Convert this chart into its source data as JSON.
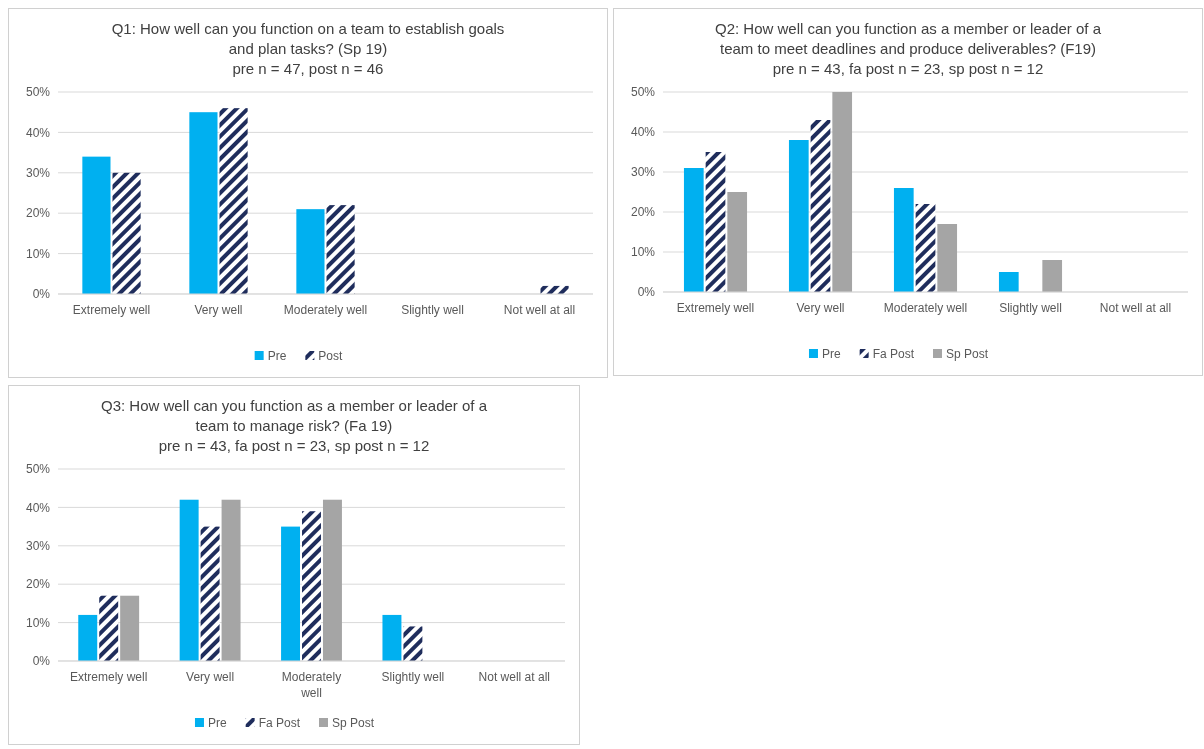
{
  "chart_data": [
    {
      "type": "bar",
      "title": "Q1: How well can you function on a team to establish goals and plan tasks? (Sp 19)",
      "subtitle": "pre n = 47, post n = 46",
      "categories": [
        "Extremely well",
        "Very well",
        "Moderately well",
        "Slightly well",
        "Not well at all"
      ],
      "series": [
        {
          "name": "Pre",
          "color": "#00b0f0",
          "values": [
            34,
            45,
            21,
            0,
            0
          ]
        },
        {
          "name": "Post",
          "color": "#1f2d5c",
          "values": [
            30,
            46,
            22,
            0,
            2
          ]
        }
      ],
      "ylim": [
        0,
        50
      ],
      "yticks": [
        {
          "value": 0,
          "label": "0%"
        },
        {
          "value": 10,
          "label": "10%"
        },
        {
          "value": 20,
          "label": "20%"
        },
        {
          "value": 30,
          "label": "30%"
        },
        {
          "value": 40,
          "label": "40%"
        },
        {
          "value": 50,
          "label": "50%"
        }
      ],
      "grid": "y",
      "legend": "bottom"
    },
    {
      "type": "bar",
      "title": "Q2: How well can you function as a member or leader of a team to meet deadlines and produce deliverables? (F19)",
      "subtitle": "pre n = 43, fa post n = 23, sp post n = 12",
      "categories": [
        "Extremely well",
        "Very well",
        "Moderately well",
        "Slightly well",
        "Not well at all"
      ],
      "series": [
        {
          "name": "Pre",
          "color": "#00b0f0",
          "values": [
            31,
            38,
            26,
            5,
            0
          ]
        },
        {
          "name": "Fa Post",
          "color": "#1f2d5c",
          "values": [
            35,
            43,
            22,
            0,
            0
          ]
        },
        {
          "name": "Sp Post",
          "color": "#a5a5a5",
          "values": [
            25,
            50,
            17,
            8,
            0
          ]
        }
      ],
      "ylim": [
        0,
        50
      ],
      "yticks": [
        {
          "value": 0,
          "label": "0%"
        },
        {
          "value": 10,
          "label": "10%"
        },
        {
          "value": 20,
          "label": "20%"
        },
        {
          "value": 30,
          "label": "30%"
        },
        {
          "value": 40,
          "label": "40%"
        },
        {
          "value": 50,
          "label": "50%"
        }
      ],
      "grid": "y",
      "legend": "bottom"
    },
    {
      "type": "bar",
      "title": "Q3: How well can you function as a member or leader of a team to manage risk? (Fa 19)",
      "subtitle": "pre n = 43, fa post n = 23, sp post n = 12",
      "categories": [
        "Extremely well",
        "Very well",
        "Moderately well",
        "Slightly well",
        "Not well at all"
      ],
      "series": [
        {
          "name": "Pre",
          "color": "#00b0f0",
          "values": [
            12,
            42,
            35,
            12,
            0
          ]
        },
        {
          "name": "Fa Post",
          "color": "#1f2d5c",
          "values": [
            17,
            35,
            39,
            9,
            0
          ]
        },
        {
          "name": "Sp Post",
          "color": "#a5a5a5",
          "values": [
            17,
            42,
            42,
            0,
            0
          ]
        }
      ],
      "ylim": [
        0,
        50
      ],
      "yticks": [
        {
          "value": 0,
          "label": "0%"
        },
        {
          "value": 10,
          "label": "10%"
        },
        {
          "value": 20,
          "label": "20%"
        },
        {
          "value": 30,
          "label": "30%"
        },
        {
          "value": 40,
          "label": "40%"
        },
        {
          "value": 50,
          "label": "50%"
        }
      ],
      "grid": "y",
      "legend": "bottom"
    }
  ]
}
